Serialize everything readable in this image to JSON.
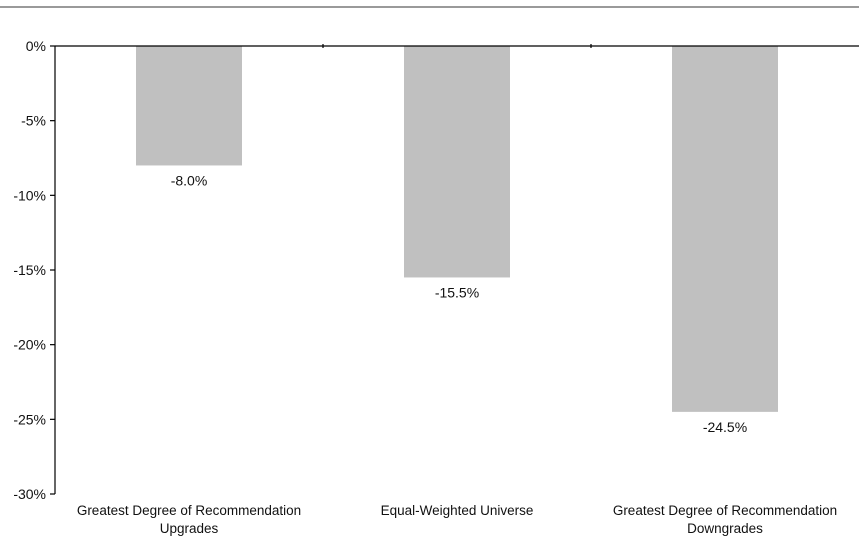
{
  "chart_data": {
    "type": "bar",
    "categories": [
      [
        "Greatest Degree of Recommendation",
        "Upgrades"
      ],
      [
        "Equal-Weighted Universe"
      ],
      [
        "Greatest Degree of Recommendation",
        "Downgrades"
      ]
    ],
    "values": [
      -8.0,
      -15.5,
      -24.5
    ],
    "data_labels": [
      "-8.0%",
      "-15.5%",
      "-24.5%"
    ],
    "y_ticks": [
      0,
      -5,
      -10,
      -15,
      -20,
      -25,
      -30
    ],
    "y_tick_labels": [
      "0%",
      "-5%",
      "-10%",
      "-15%",
      "-20%",
      "-25%",
      "-30%"
    ],
    "ylim": [
      -30,
      0
    ],
    "title": "",
    "xlabel": "",
    "ylabel": "",
    "grid": false,
    "legend": "none",
    "bar_color": "#c0c0c0",
    "axis_color": "#000000",
    "rule_color": "#9a9a9a"
  }
}
